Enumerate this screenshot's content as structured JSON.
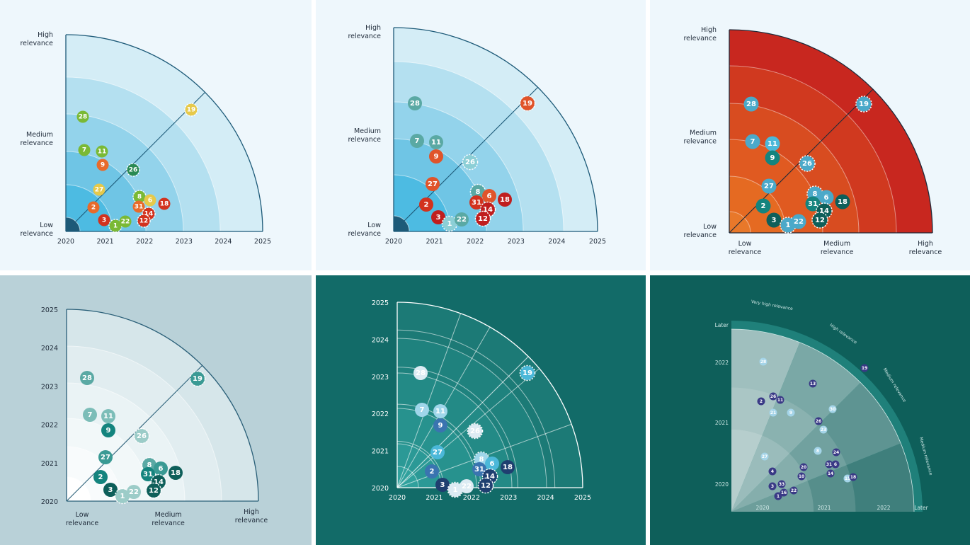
{
  "panels": [
    {
      "id": "p1",
      "style": {
        "bg": "#eef7fc",
        "axis": "#1d5a78",
        "text": "#1f2b3a",
        "num_color": "#ffffff"
      },
      "bands": [
        "#d4edf6",
        "#b4e0f0",
        "#93d3eb",
        "#6fc5e5",
        "#4dbbe2",
        "#1d5a78"
      ],
      "x_ticks": [
        "2020",
        "2021",
        "2022",
        "2023",
        "2024",
        "2025"
      ],
      "y_labels": [
        {
          "lines": [
            "High",
            "relevance"
          ]
        },
        {
          "lines": [
            "Medium",
            "relevance"
          ]
        },
        {
          "lines": [
            "Low",
            "relevance"
          ]
        }
      ],
      "dots": [
        {
          "n": "28",
          "c": "#7ab935"
        },
        {
          "n": "7",
          "c": "#7ab935"
        },
        {
          "n": "11",
          "c": "#7ab935"
        },
        {
          "n": "9",
          "c": "#e86a2a"
        },
        {
          "n": "26",
          "c": "#2a8a52",
          "dash": true
        },
        {
          "n": "19",
          "c": "#e6c94a",
          "dash": true
        },
        {
          "n": "27",
          "c": "#e6c94a"
        },
        {
          "n": "2",
          "c": "#e86a2a"
        },
        {
          "n": "3",
          "c": "#d2321e"
        },
        {
          "n": "1",
          "c": "#7ab935",
          "dash": true
        },
        {
          "n": "22",
          "c": "#7ab935"
        },
        {
          "n": "8",
          "c": "#7ab935",
          "dash": true
        },
        {
          "n": "6",
          "c": "#e6c94a"
        },
        {
          "n": "31",
          "c": "#e86a2a"
        },
        {
          "n": "14",
          "c": "#d2321e",
          "dash": true
        },
        {
          "n": "12",
          "c": "#d2321e",
          "dash": true
        },
        {
          "n": "18",
          "c": "#d2321e"
        }
      ]
    },
    {
      "id": "p2",
      "style": {
        "bg": "#eef7fc",
        "axis": "#1d5a78",
        "text": "#1f2b3a"
      },
      "bands": [
        "#d4edf6",
        "#b4e0f0",
        "#93d3eb",
        "#6fc5e5",
        "#4dbbe2",
        "#1d5a78"
      ],
      "x_ticks": [
        "2020",
        "2021",
        "2022",
        "2023",
        "2024",
        "2025"
      ],
      "y_labels": [
        {
          "lines": [
            "High",
            "relevance"
          ]
        },
        {
          "lines": [
            "Medium",
            "relevance"
          ]
        },
        {
          "lines": [
            "Low",
            "relevance"
          ]
        }
      ],
      "dots": [
        {
          "n": "28",
          "c": "#5aa9a4"
        },
        {
          "n": "7",
          "c": "#5aa9a4"
        },
        {
          "n": "11",
          "c": "#5aa9a4"
        },
        {
          "n": "9",
          "c": "#e0542a"
        },
        {
          "n": "26",
          "c": "#8ccfd6",
          "dash": true
        },
        {
          "n": "19",
          "c": "#e0542a",
          "dash": true
        },
        {
          "n": "27",
          "c": "#e0542a"
        },
        {
          "n": "2",
          "c": "#d2321e"
        },
        {
          "n": "3",
          "c": "#c01e1e"
        },
        {
          "n": "1",
          "c": "#8ccfd6",
          "dash": true
        },
        {
          "n": "22",
          "c": "#5aa9a4"
        },
        {
          "n": "8",
          "c": "#5aa9a4",
          "dash": true
        },
        {
          "n": "6",
          "c": "#e0542a"
        },
        {
          "n": "31",
          "c": "#d2321e"
        },
        {
          "n": "14",
          "c": "#c01e1e",
          "dash": true
        },
        {
          "n": "12",
          "c": "#c01e1e",
          "dash": true
        },
        {
          "n": "18",
          "c": "#c01e1e"
        }
      ]
    },
    {
      "id": "p3",
      "style": {
        "bg": "#eef7fc",
        "axis": "#1f2b3a",
        "text": "#1f2b3a"
      },
      "bands": [
        "#c8271f",
        "#d0391f",
        "#d84c20",
        "#e05a21",
        "#e56a22",
        "#e8782a"
      ],
      "x_labels": [
        {
          "lines": [
            "Low",
            "relevance"
          ]
        },
        {
          "lines": [
            "Medium",
            "relevance"
          ]
        },
        {
          "lines": [
            "High",
            "relevance"
          ]
        }
      ],
      "y_labels": [
        {
          "lines": [
            "High",
            "relevance"
          ]
        },
        {
          "lines": [
            "Medium",
            "relevance"
          ]
        },
        {
          "lines": [
            "Low",
            "relevance"
          ]
        }
      ],
      "dots": [
        {
          "n": "28",
          "c": "#4ba9c9"
        },
        {
          "n": "7",
          "c": "#4ba9c9"
        },
        {
          "n": "11",
          "c": "#4bb8d9"
        },
        {
          "n": "9",
          "c": "#14847e"
        },
        {
          "n": "26",
          "c": "#4ba9c9",
          "dash": true
        },
        {
          "n": "19",
          "c": "#4ba9c9",
          "dash": true
        },
        {
          "n": "27",
          "c": "#4ba9c9"
        },
        {
          "n": "2",
          "c": "#14847e"
        },
        {
          "n": "3",
          "c": "#0e5f5a"
        },
        {
          "n": "1",
          "c": "#4ba9c9",
          "dash": true
        },
        {
          "n": "22",
          "c": "#4ba9c9"
        },
        {
          "n": "8",
          "c": "#4ba9c9",
          "dash": true
        },
        {
          "n": "6",
          "c": "#4ba9c9"
        },
        {
          "n": "31",
          "c": "#14847e"
        },
        {
          "n": "14",
          "c": "#0e5f5a",
          "dash": true
        },
        {
          "n": "12",
          "c": "#0e5f5a",
          "dash": true
        },
        {
          "n": "18",
          "c": "#0e5f5a"
        }
      ]
    },
    {
      "id": "p4",
      "style": {
        "bg": "#b9d1d8",
        "axis": "#2a5f78",
        "text": "#1f2b3a"
      },
      "bands": [
        "#d6e6ea",
        "#e1edf0",
        "#eaf3f5",
        "#f2f8f9",
        "#f8fbfc",
        "#ffffff"
      ],
      "y_ticks": [
        "2020",
        "2021",
        "2022",
        "2023",
        "2024",
        "2025"
      ],
      "x_labels": [
        {
          "lines": [
            "Low",
            "relevance"
          ]
        },
        {
          "lines": [
            "Medium",
            "relevance"
          ]
        },
        {
          "lines": [
            "High",
            "relevance"
          ]
        }
      ],
      "dots": [
        {
          "n": "28",
          "c": "#5aa9a4"
        },
        {
          "n": "7",
          "c": "#7cbdb8"
        },
        {
          "n": "11",
          "c": "#7cbdb8"
        },
        {
          "n": "9",
          "c": "#14847e"
        },
        {
          "n": "26",
          "c": "#9cccc8",
          "dash": true
        },
        {
          "n": "19",
          "c": "#3a9a94",
          "dash": true
        },
        {
          "n": "27",
          "c": "#3a9a94"
        },
        {
          "n": "2",
          "c": "#14847e"
        },
        {
          "n": "3",
          "c": "#0e5f5a"
        },
        {
          "n": "1",
          "c": "#9cccc8",
          "dash": true
        },
        {
          "n": "22",
          "c": "#9cccc8"
        },
        {
          "n": "8",
          "c": "#5aa9a4",
          "dash": true
        },
        {
          "n": "6",
          "c": "#3a9a94"
        },
        {
          "n": "31",
          "c": "#14847e"
        },
        {
          "n": "14",
          "c": "#0e5f5a",
          "dash": true
        },
        {
          "n": "12",
          "c": "#0e5f5a",
          "dash": true
        },
        {
          "n": "18",
          "c": "#0e5f5a"
        }
      ]
    },
    {
      "id": "p5",
      "style": {
        "bg": "#126b68",
        "axis": "#ffffff",
        "text": "#ffffff"
      },
      "bands": [
        "#1c7a76",
        "#1f827e",
        "#238a86",
        "#27928e",
        "#2b9996",
        "#30a19d"
      ],
      "x_ticks": [
        "2020",
        "2021",
        "2022",
        "2023",
        "2024",
        "2025"
      ],
      "y_ticks": [
        "2020",
        "2021",
        "2022",
        "2023",
        "2024",
        "2025"
      ],
      "dots": [
        {
          "n": "28",
          "c": "#dcebf3"
        },
        {
          "n": "7",
          "c": "#9fd6ea"
        },
        {
          "n": "11",
          "c": "#9fd6ea"
        },
        {
          "n": "9",
          "c": "#3a74b0"
        },
        {
          "n": "26",
          "c": "#dcebf3",
          "dash": true
        },
        {
          "n": "19",
          "c": "#4bb8d9",
          "dash": true
        },
        {
          "n": "27",
          "c": "#4bb8d9"
        },
        {
          "n": "2",
          "c": "#3a74b0"
        },
        {
          "n": "3",
          "c": "#1f3f70"
        },
        {
          "n": "1",
          "c": "#dcebf3",
          "dash": true
        },
        {
          "n": "22",
          "c": "#dcebf3"
        },
        {
          "n": "8",
          "c": "#9fd6ea",
          "dash": true
        },
        {
          "n": "6",
          "c": "#4bb8d9"
        },
        {
          "n": "31",
          "c": "#3a74b0"
        },
        {
          "n": "14",
          "c": "#1f3f70",
          "dash": true
        },
        {
          "n": "12",
          "c": "#1f3f70",
          "dash": true
        },
        {
          "n": "18",
          "c": "#1f3f70"
        }
      ]
    },
    {
      "id": "p6",
      "style": {
        "bg": "#0e5f5a",
        "axis": "#cfe8e6",
        "text": "#cfe8e6"
      },
      "x_ticks": [
        "2020",
        "2021",
        "2022",
        "Later"
      ],
      "y_ticks": [
        "2020",
        "2021",
        "2022",
        "Later"
      ],
      "band_labels": [
        "Very high relevance",
        "High relevance",
        "Medium relevance",
        "Medium relevance"
      ],
      "dots": [
        {
          "n": "28",
          "c": "#a4d4e8"
        },
        {
          "n": "19",
          "c": "#3a3a86"
        },
        {
          "n": "13",
          "c": "#3a3a86"
        },
        {
          "n": "26",
          "c": "#3a3a86"
        },
        {
          "n": "11",
          "c": "#3a3a86"
        },
        {
          "n": "2",
          "c": "#3a3a86"
        },
        {
          "n": "21",
          "c": "#a4d4e8"
        },
        {
          "n": "9",
          "c": "#a4d4e8"
        },
        {
          "n": "30",
          "c": "#a4d4e8"
        },
        {
          "n": "26",
          "c": "#3a3a86"
        },
        {
          "n": "23",
          "c": "#a4d4e8"
        },
        {
          "n": "8",
          "c": "#a4d4e8"
        },
        {
          "n": "24",
          "c": "#3a3a86"
        },
        {
          "n": "27",
          "c": "#a4d4e8"
        },
        {
          "n": "20",
          "c": "#3a3a86"
        },
        {
          "n": "31",
          "c": "#3a3a86"
        },
        {
          "n": "6",
          "c": "#3a3a86"
        },
        {
          "n": "4",
          "c": "#3a3a86"
        },
        {
          "n": "10",
          "c": "#3a3a86"
        },
        {
          "n": "14",
          "c": "#3a3a86"
        },
        {
          "n": "15",
          "c": "#a4d4e8"
        },
        {
          "n": "18",
          "c": "#3a3a86"
        },
        {
          "n": "3",
          "c": "#3a3a86"
        },
        {
          "n": "33",
          "c": "#3a3a86"
        },
        {
          "n": "16",
          "c": "#3a3a86"
        },
        {
          "n": "22",
          "c": "#3a3a86"
        },
        {
          "n": "1",
          "c": "#3a3a86"
        }
      ]
    }
  ]
}
